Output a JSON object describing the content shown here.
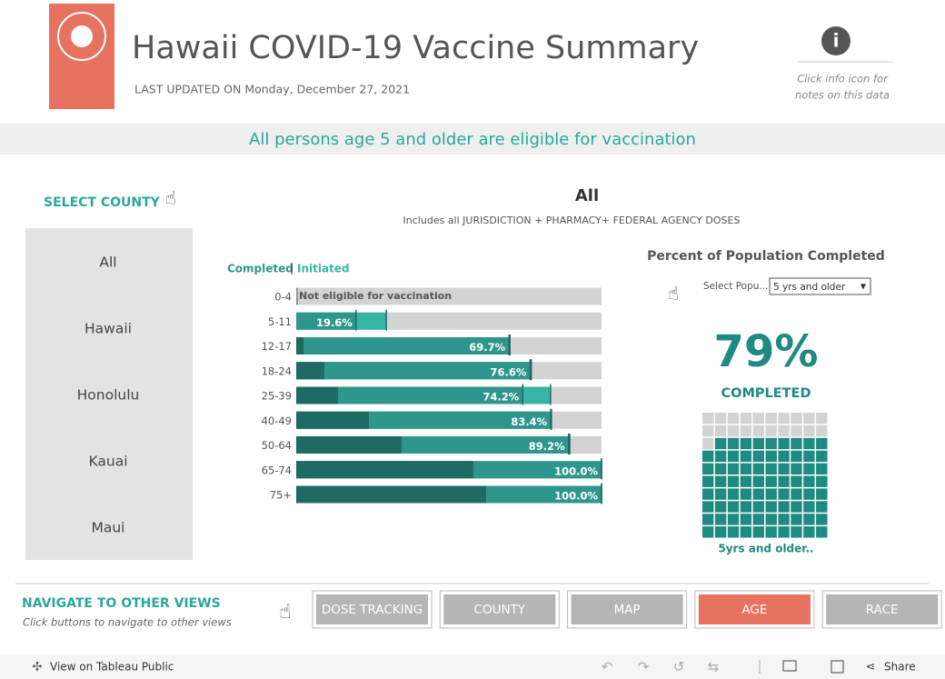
{
  "header": {
    "title": "Hawaii COVID-19 Vaccine Summary",
    "updated": "LAST UPDATED ON Monday, December 27, 2021",
    "info_note": [
      "Click info icon for",
      "notes on this data"
    ]
  },
  "banner": "All persons age 5 and older are eligible for vaccination",
  "county_select": {
    "title": "SELECT COUNTY",
    "options": [
      "All",
      "Hawaii",
      "Honolulu",
      "Kauai",
      "Maui"
    ]
  },
  "chart_data": {
    "type": "bar",
    "orientation": "horizontal",
    "title": "All",
    "subtitle": "Includes all JURISDICTION + PHARMACY+ FEDERAL AGENCY DOSES",
    "annotation": "Not eligible for vaccination",
    "categories": [
      "0-4",
      "5-11",
      "12-17",
      "18-24",
      "25-39",
      "40-49",
      "50-64",
      "65-74",
      "75+"
    ],
    "xlim": [
      0,
      100
    ],
    "track_color": "#d3d3d3",
    "series": [
      {
        "name": "Completed",
        "color": "#2e968c",
        "values": [
          null,
          19.6,
          69.7,
          76.6,
          74.2,
          83.4,
          89.2,
          100,
          100
        ],
        "value_labels": [
          null,
          "19.6%",
          "69.7%",
          "76.6%",
          "74.2%",
          "83.4%",
          "89.2%",
          "100.0%",
          "100.0%"
        ]
      },
      {
        "name": "Initiated",
        "color": "#36b5a5",
        "values": [
          null,
          29.5,
          70,
          77,
          83.3,
          83.6,
          89.6,
          100,
          100
        ]
      },
      {
        "color": "#1f6b63",
        "values": [
          null,
          0,
          2.4,
          9.2,
          13.7,
          23.8,
          34.5,
          58,
          62.2
        ]
      }
    ]
  },
  "summary": {
    "title": "Percent of Population Completed",
    "select_label": "Select Popu...",
    "select_value": "5 yrs and older",
    "value": 79,
    "value_label": "79%",
    "label": "COMPLETED",
    "footer": "5yrs and older..",
    "filled_color": "#1e8a80",
    "empty_color": "#d3d3d3"
  },
  "navigation": {
    "title": "NAVIGATE TO OTHER VIEWS",
    "subtitle": "Click buttons to navigate to other views",
    "buttons": [
      "DOSE TRACKING",
      "COUNTY",
      "MAP",
      "AGE",
      "RACE"
    ],
    "active": "AGE"
  },
  "toolbar": {
    "link": "View on Tableau Public",
    "share": "Share"
  }
}
